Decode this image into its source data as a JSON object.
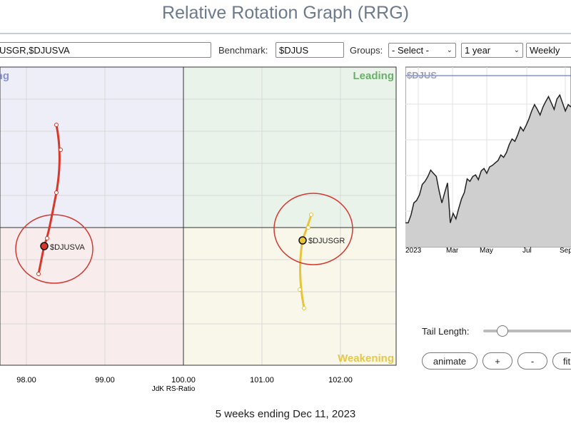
{
  "header": {
    "title": "Relative Rotation Graph (RRG)"
  },
  "controls": {
    "symbols_value": "USGR,$DJUSVA",
    "benchmark_label": "Benchmark:",
    "benchmark_value": "$DJUS",
    "groups_label": "Groups:",
    "groups_value": "- Select -",
    "period_value": "1 year",
    "frequency_value": "Weekly"
  },
  "rrg": {
    "quadrants": {
      "improving": "Improving",
      "leading": "Leading",
      "weakening": "Weakening"
    },
    "x_axis_label": "JdK RS-Ratio",
    "x_ticks": [
      "98.00",
      "99.00",
      "100.00",
      "101.00",
      "102.00"
    ],
    "colors": {
      "improving": "#eeeef8",
      "leading": "#eaf3ea",
      "lagging": "#f8ecec",
      "weakening": "#f8f7ea",
      "leading_text": "#6ab06a",
      "weakening_text": "#e6c84a",
      "improving_text": "#8a92d8"
    },
    "series": [
      {
        "name": "$DJUSVA",
        "color": "#d8382a"
      },
      {
        "name": "$DJUSGR",
        "color": "#e8c43a"
      }
    ]
  },
  "benchmark_chart": {
    "symbol": "$DJUS",
    "x_ticks": [
      "2023",
      "Mar",
      "May",
      "Jul",
      "Sep"
    ],
    "values": [
      30,
      30,
      40,
      55,
      58,
      65,
      78,
      82,
      88,
      96,
      92,
      88,
      70,
      55,
      68,
      80,
      30,
      42,
      35,
      48,
      60,
      68,
      85,
      82,
      88,
      90,
      84,
      95,
      98,
      92,
      100,
      102,
      105,
      108,
      115,
      112,
      118,
      128,
      135,
      132,
      140,
      150,
      145,
      152,
      160,
      170,
      178,
      172,
      165,
      175,
      182,
      188,
      180,
      172,
      185,
      190,
      180,
      170,
      178,
      175
    ]
  },
  "tail": {
    "label": "Tail Length:"
  },
  "buttons": {
    "animate": "animate",
    "plus": "+",
    "minus": "-",
    "fit": "fit"
  },
  "footer": {
    "text": "5 weeks ending Dec 11, 2023"
  }
}
